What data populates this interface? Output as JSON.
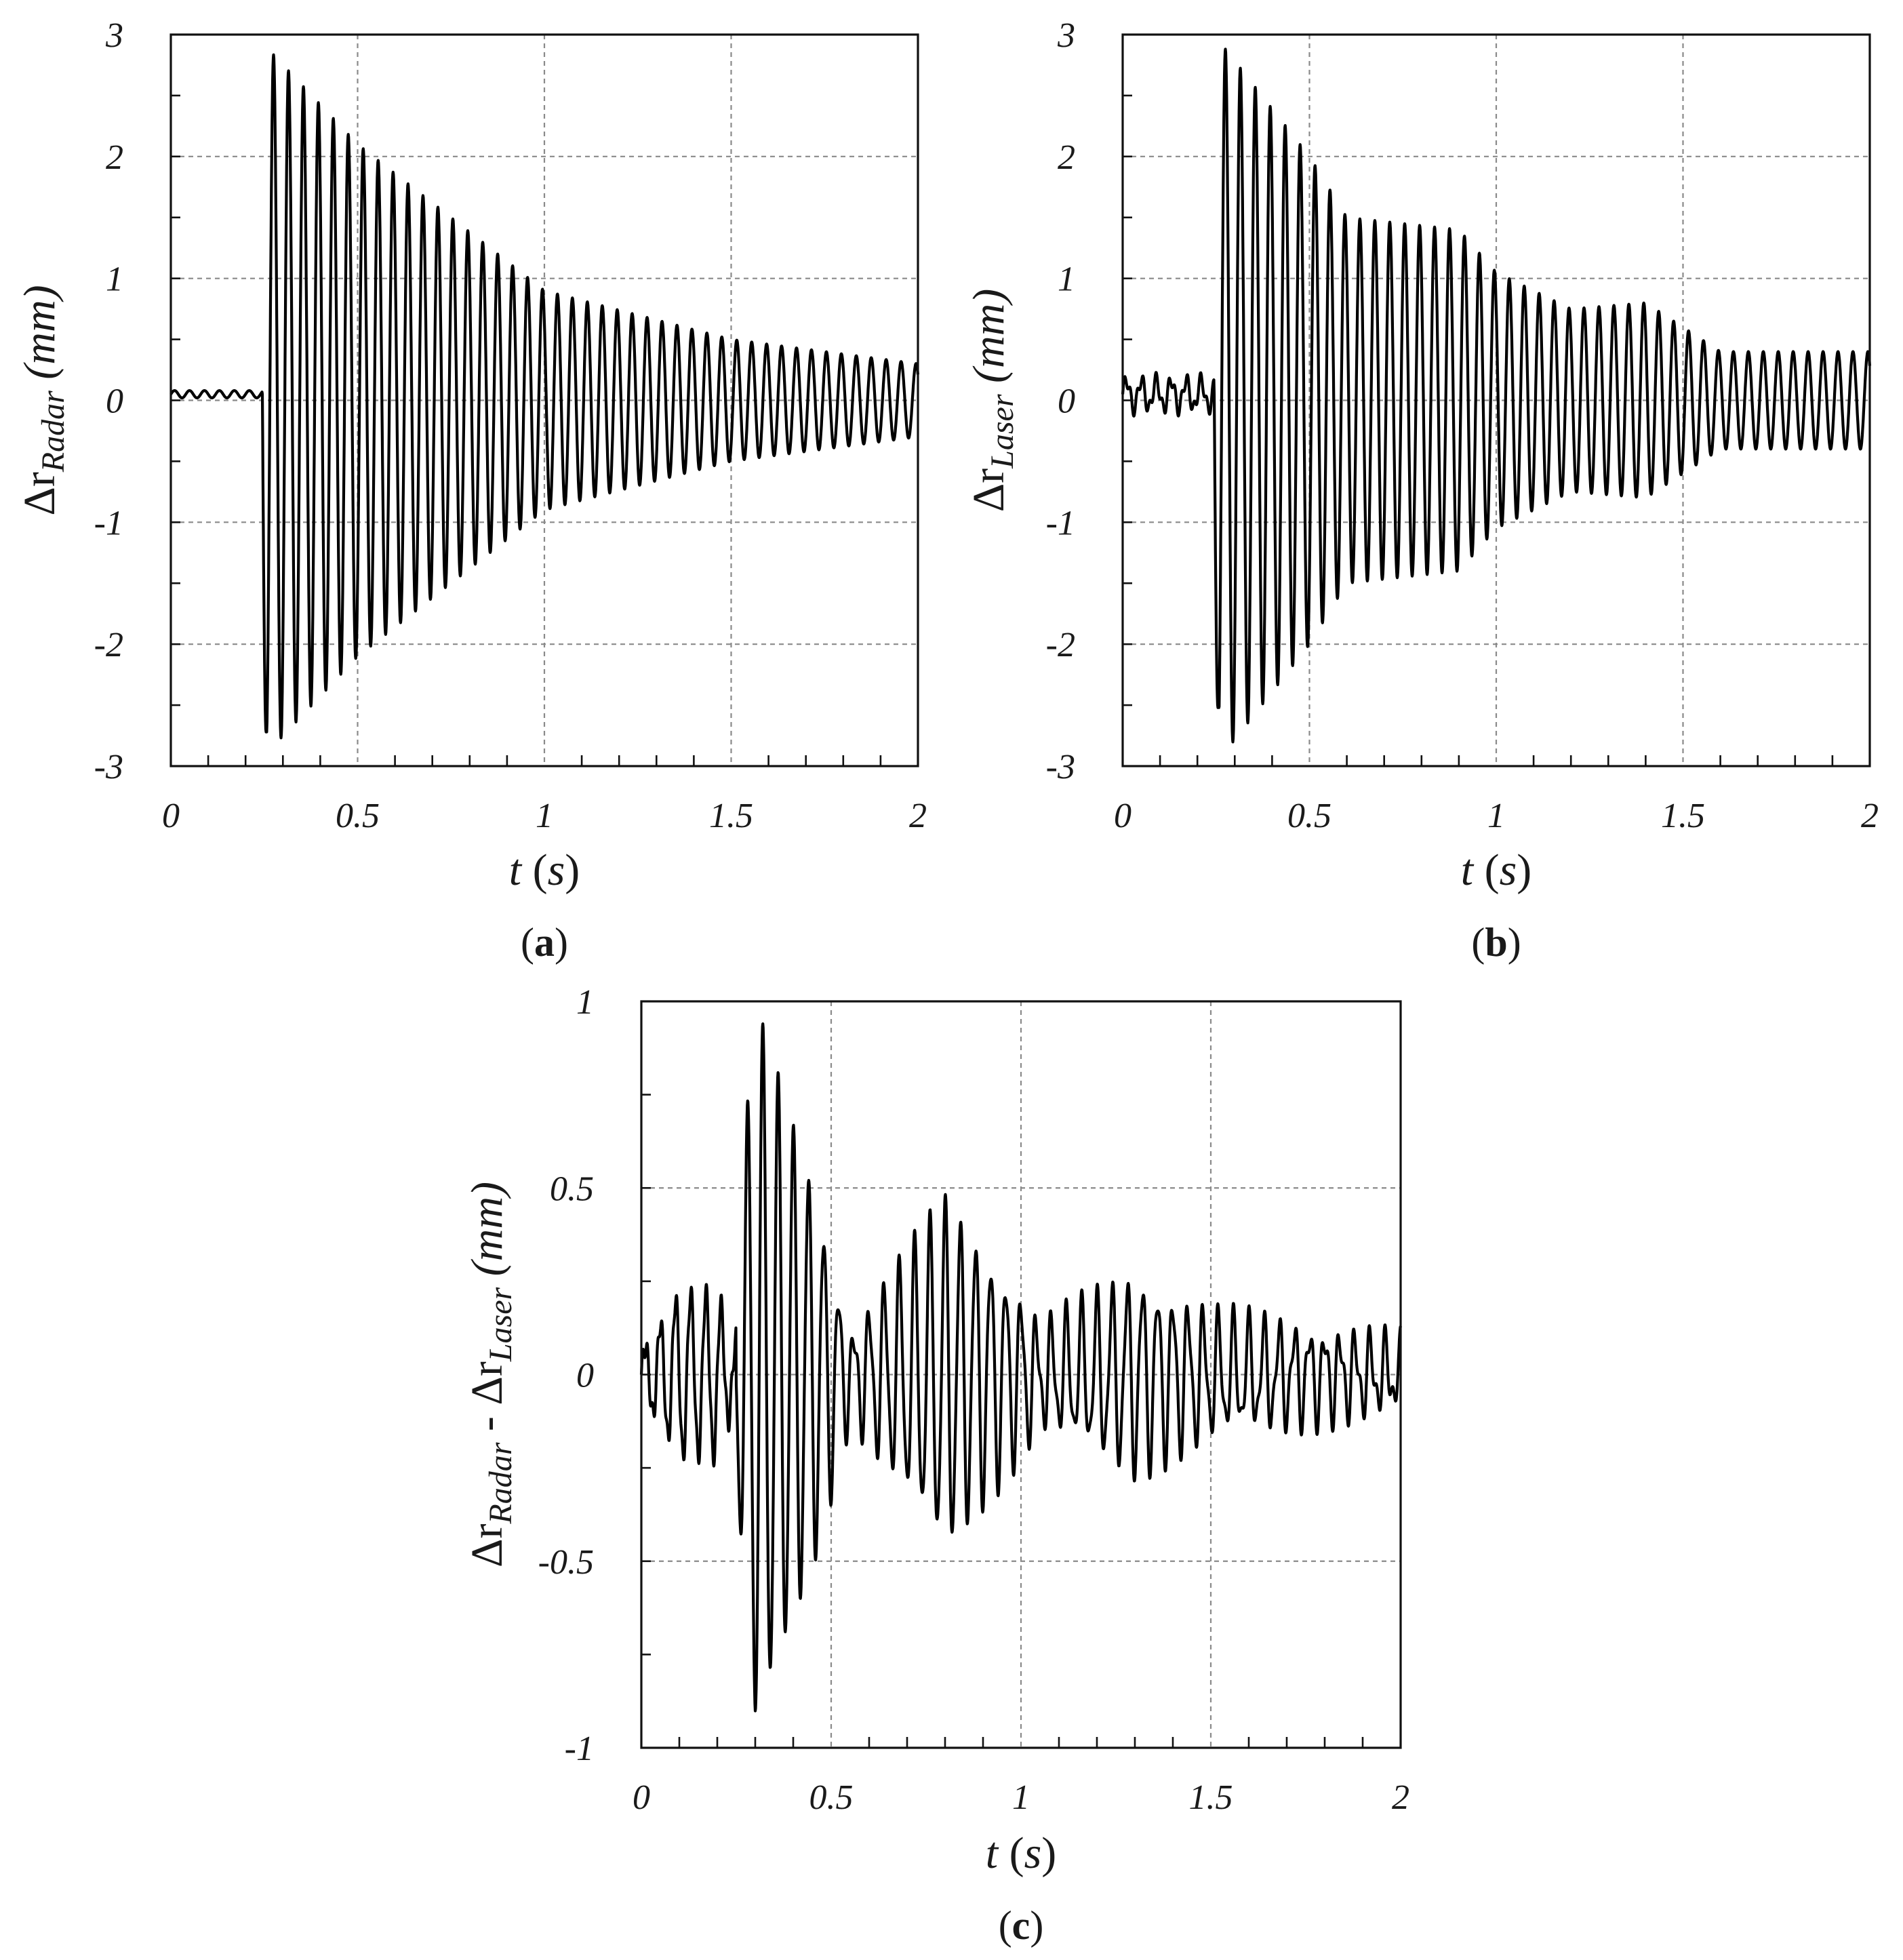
{
  "chart_data": [
    {
      "id": "a",
      "type": "line",
      "panel_label": "a",
      "xlabel": "t (s)",
      "ylabel": "Δr_Radar (mm)",
      "ylabel_main": "Δr",
      "ylabel_sub": "Radar",
      "ylabel_unit": "(mm)",
      "xlabel_var": "t",
      "xlabel_unit": "s",
      "xlim": [
        0,
        2
      ],
      "ylim": [
        -3,
        3
      ],
      "xticks": [
        "0",
        "0.5",
        "1",
        "1.5",
        "2"
      ],
      "yticks": [
        "3",
        "2",
        "1",
        "0",
        "-1",
        "-2",
        "-3"
      ],
      "grid": true,
      "series": [
        {
          "description_points": {
            "pre_impact_level": 0.05,
            "impact_time": 0.245,
            "first_min": -2.72,
            "first_max": 2.9,
            "oscillation_period": 0.04,
            "envelope_samples": [
              [
                0.27,
                2.85
              ],
              [
                0.5,
                2.1
              ],
              [
                1.0,
                0.9
              ],
              [
                1.5,
                0.5
              ],
              [
                2.0,
                0.3
              ]
            ]
          }
        }
      ]
    },
    {
      "id": "b",
      "type": "line",
      "panel_label": "b",
      "xlabel": "t (s)",
      "ylabel": "Δr_Laser (mm)",
      "ylabel_main": "Δr",
      "ylabel_sub": "Laser",
      "ylabel_unit": "(mm)",
      "xlabel_var": "t",
      "xlabel_unit": "s",
      "xlim": [
        0,
        2
      ],
      "ylim": [
        -3,
        3
      ],
      "xticks": [
        "0",
        "0.5",
        "1",
        "1.5",
        "2"
      ],
      "yticks": [
        "3",
        "2",
        "1",
        "0",
        "-1",
        "-2",
        "-3"
      ],
      "grid": true,
      "series": [
        {
          "description_points": {
            "pre_impact_level": 0.05,
            "impact_time": 0.245,
            "first_min": -2.52,
            "first_max": 3.0,
            "oscillation_period": 0.04,
            "envelope_samples": [
              [
                0.27,
                2.9
              ],
              [
                0.5,
                2.0
              ],
              [
                0.6,
                1.5
              ],
              [
                0.9,
                1.4
              ],
              [
                1.0,
                1.05
              ],
              [
                1.2,
                0.75
              ],
              [
                1.4,
                0.8
              ],
              [
                1.6,
                0.4
              ],
              [
                2.0,
                0.4
              ]
            ]
          }
        }
      ]
    },
    {
      "id": "c",
      "type": "line",
      "panel_label": "c",
      "xlabel": "t (s)",
      "ylabel": "Δr_Radar - Δr_Laser (mm)",
      "ylabel_main": "Δr",
      "ylabel_sub": "Radar",
      "ylabel_mid": " - Δr",
      "ylabel_sub2": "Laser",
      "ylabel_unit": "(mm)",
      "xlabel_var": "t",
      "xlabel_unit": "s",
      "xlim": [
        0,
        2
      ],
      "ylim": [
        -1,
        1
      ],
      "xticks": [
        "0",
        "0.5",
        "1",
        "1.5",
        "2"
      ],
      "yticks": [
        "1",
        "0.5",
        "0",
        "-0.5",
        "-1"
      ],
      "grid": true,
      "series": [
        {
          "description_points": {
            "pre_impact_amplitude": 0.22,
            "impact_time": 0.25,
            "min": -0.98,
            "max": 1.0,
            "oscillation_period": 0.04,
            "envelope_samples": [
              [
                0.3,
                0.95
              ],
              [
                0.45,
                0.5
              ],
              [
                0.55,
                0.1
              ],
              [
                0.8,
                0.45
              ],
              [
                1.0,
                0.2
              ],
              [
                1.05,
                0.12
              ],
              [
                1.3,
                0.25
              ],
              [
                1.5,
                0.15
              ],
              [
                2.0,
                0.08
              ]
            ]
          }
        }
      ]
    }
  ]
}
